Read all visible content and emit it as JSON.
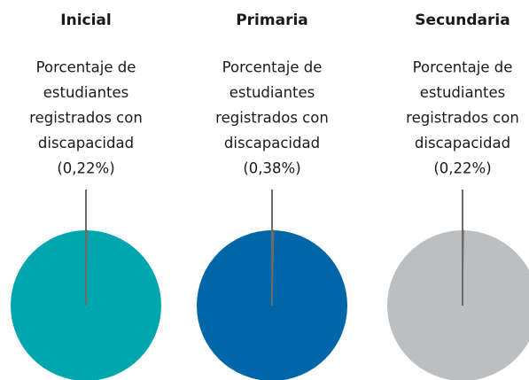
{
  "chart_data": [
    {
      "type": "pie",
      "title": "Inicial",
      "label_lines": [
        "Porcentaje de",
        "estudiantes",
        "registrados con",
        "discapacidad"
      ],
      "values": [
        0.22
      ],
      "value_labels": [
        "(0,22%)"
      ],
      "color": "#00a6ad"
    },
    {
      "type": "pie",
      "title": "Primaria",
      "label_lines": [
        "Porcentaje de",
        "estudiantes",
        "registrados con",
        "discapacidad"
      ],
      "values": [
        0.38
      ],
      "value_labels": [
        "(0,38%)"
      ],
      "color": "#0066a8"
    },
    {
      "type": "pie",
      "title": "Secundaria",
      "label_lines": [
        "Porcentaje de",
        "estudiantes",
        "registrados con",
        "discapacidad"
      ],
      "values": [
        0.22
      ],
      "value_labels": [
        "(0,22%)"
      ],
      "color": "#bdbebf"
    }
  ]
}
